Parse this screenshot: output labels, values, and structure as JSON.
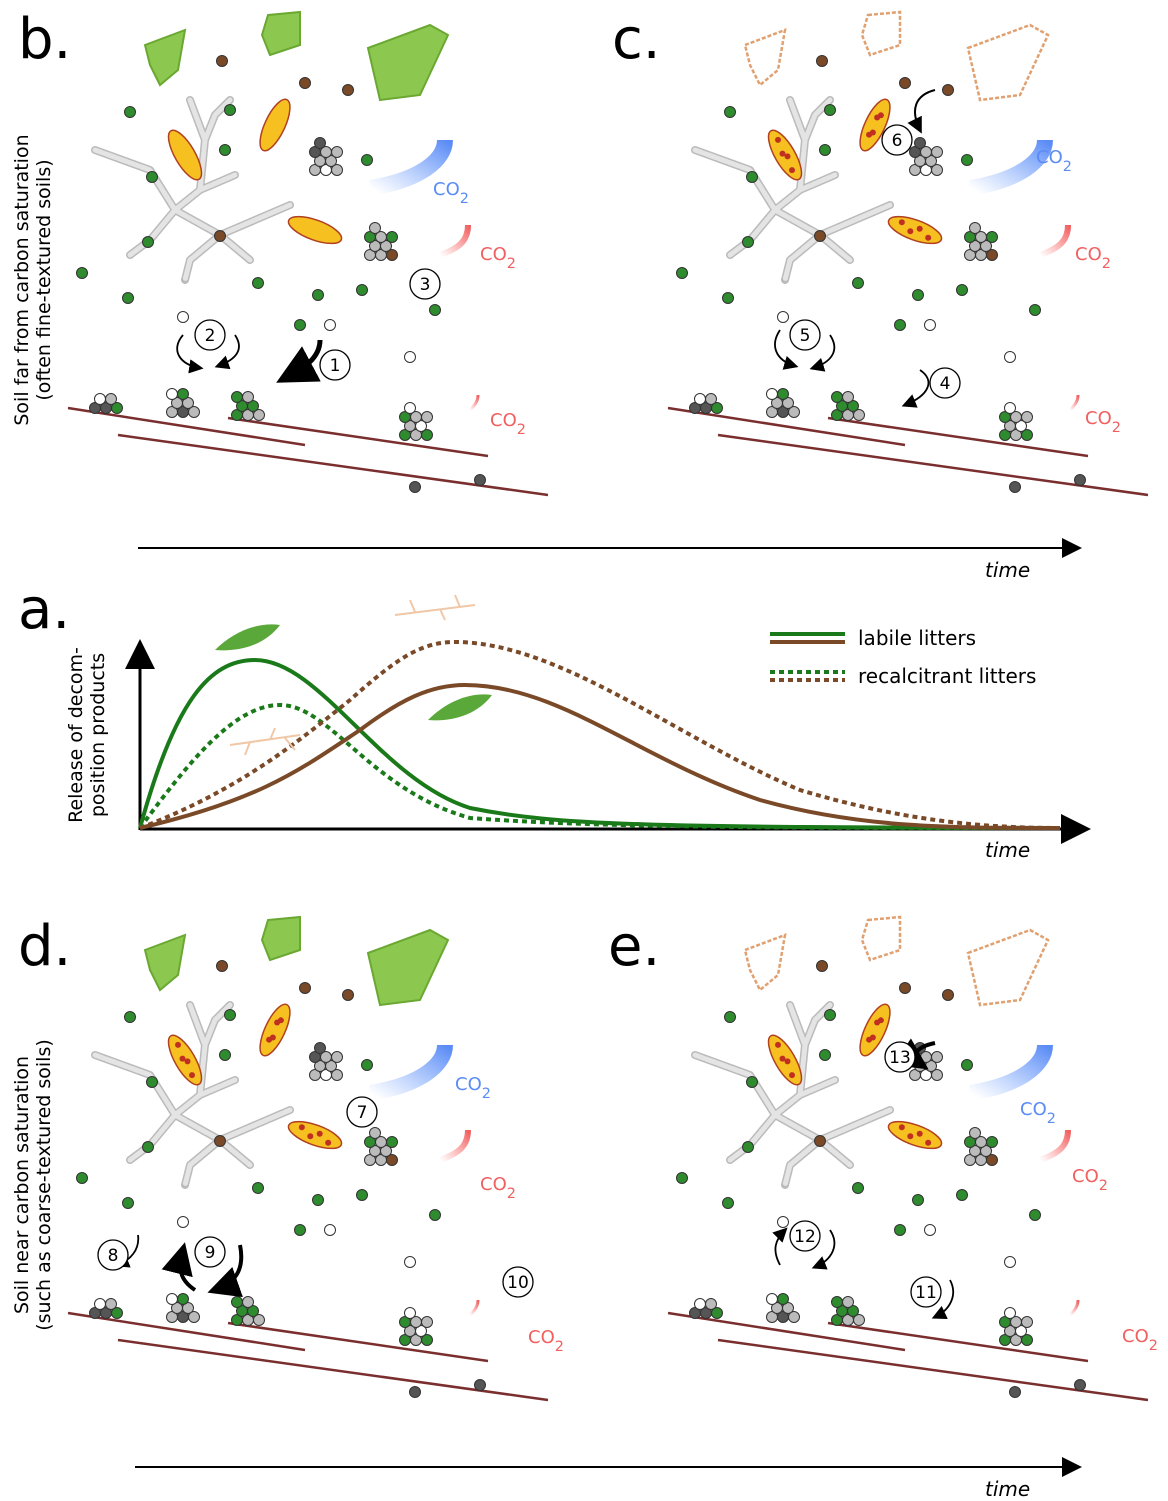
{
  "panels": {
    "b": "b.",
    "c": "c.",
    "a": "a.",
    "d": "d.",
    "e": "e."
  },
  "top_side_label": [
    "Soil far from carbon saturation",
    "(often fine-textured soils)"
  ],
  "bottom_side_label": [
    "Soil near carbon saturation",
    "(such as coarse-textured soils)"
  ],
  "release_axis_label": [
    "Release of decom-",
    "position products"
  ],
  "time_labels": [
    "time",
    "time",
    "time"
  ],
  "legend": [
    "labile litters",
    "recalcitrant litters"
  ],
  "co2": {
    "main": "CO",
    "sub": "2"
  },
  "steps": [
    1,
    2,
    3,
    4,
    5,
    6,
    7,
    8,
    9,
    10,
    11,
    12,
    13
  ]
}
